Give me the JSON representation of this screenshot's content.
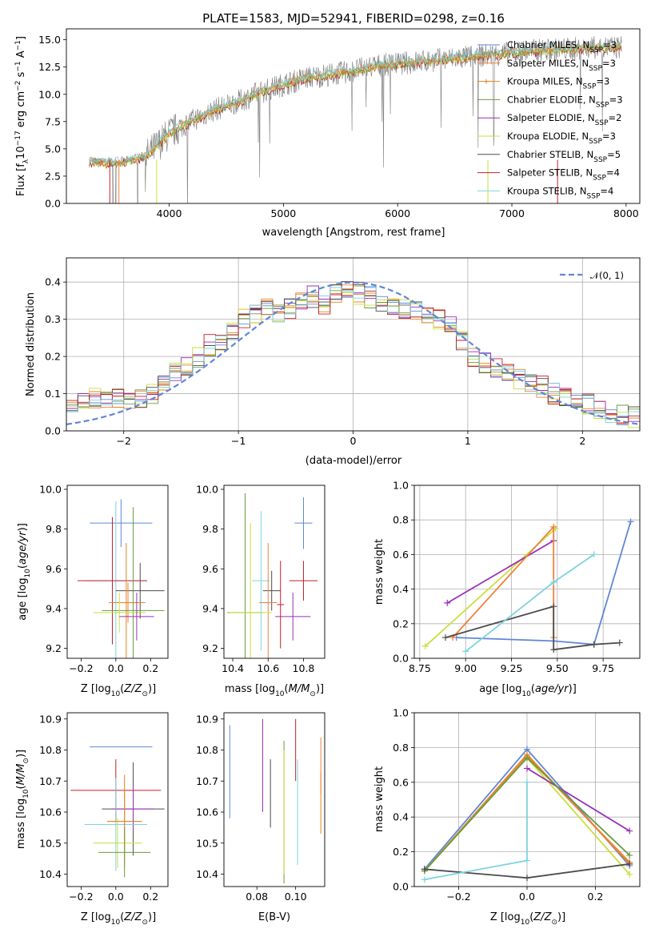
{
  "figure": {
    "title": "PLATE=1583, MJD=52941, FIBERID=0298, z=0.16"
  },
  "colors": {
    "data": "#7f7f7f",
    "chabrier_miles": "#5f87d6",
    "salpeter_miles": "#f0813a",
    "kroupa_miles": "#e5841e",
    "chabrier_elodie": "#6a9b3e",
    "salpeter_elodie": "#9b2fb8",
    "kroupa_elodie": "#c9df3c",
    "chabrier_stelib": "#4d4d4d",
    "salpeter_stelib": "#c0202a",
    "kroupa_stelib": "#7fd2e0",
    "normal": "#5f87d6"
  },
  "chart_data": [
    {
      "id": "spectrum",
      "type": "line",
      "xlabel": "wavelength [Angstrom, rest frame]",
      "ylabel_html": "Flux [f",
      "ylabel_parts": [
        "Flux [f",
        "λ",
        "10",
        "−17",
        " erg cm",
        "−2",
        " s",
        "−1",
        " A",
        "−1",
        "]"
      ],
      "xlim": [
        3100,
        8120
      ],
      "ylim": [
        0,
        16
      ],
      "xticks": [
        4000,
        5000,
        6000,
        7000,
        8000
      ],
      "yticks": [
        0.0,
        2.5,
        5.0,
        7.5,
        10.0,
        12.5,
        15.0
      ],
      "ytick_labels": [
        "0.0",
        "2.5",
        "5.0",
        "7.5",
        "10.0",
        "12.5",
        "15.0"
      ],
      "continuum": {
        "x": [
          3300,
          3450,
          3600,
          3800,
          4000,
          4200,
          4400,
          4600,
          4800,
          5000,
          5200,
          5400,
          5600,
          5800,
          6000,
          6200,
          6400,
          6600,
          6800,
          7000,
          7200,
          7400,
          7600,
          7800,
          7950
        ],
        "y": [
          3.8,
          3.7,
          3.8,
          4.3,
          6.4,
          7.6,
          8.6,
          9.3,
          10.2,
          10.9,
          11.5,
          11.8,
          12.1,
          12.6,
          12.8,
          13.0,
          13.2,
          13.4,
          13.6,
          13.8,
          14.0,
          14.1,
          14.2,
          14.3,
          14.3
        ]
      },
      "grid": false,
      "legend_position": "right",
      "legend": [
        {
          "key": "chabrier_miles",
          "label": "Chabrier MILES, N",
          "sub": "SSP",
          "tail": "=3"
        },
        {
          "key": "salpeter_miles",
          "label": "Salpeter MILES, N",
          "sub": "SSP",
          "tail": "=3"
        },
        {
          "key": "kroupa_miles",
          "label": "Kroupa MILES, N",
          "sub": "SSP",
          "tail": "=3"
        },
        {
          "key": "chabrier_elodie",
          "label": "Chabrier ELODIE, N",
          "sub": "SSP",
          "tail": "=3"
        },
        {
          "key": "salpeter_elodie",
          "label": "Salpeter ELODIE, N",
          "sub": "SSP",
          "tail": "=2"
        },
        {
          "key": "kroupa_elodie",
          "label": "Kroupa ELODIE, N",
          "sub": "SSP",
          "tail": "=3"
        },
        {
          "key": "chabrier_stelib",
          "label": "Chabrier STELIB, N",
          "sub": "SSP",
          "tail": "=5"
        },
        {
          "key": "salpeter_stelib",
          "label": "Salpeter STELIB, N",
          "sub": "SSP",
          "tail": "=4"
        },
        {
          "key": "kroupa_stelib",
          "label": "Kroupa STELIB, N",
          "sub": "SSP",
          "tail": "=4"
        }
      ]
    },
    {
      "id": "residuals",
      "type": "line",
      "xlabel": "(data-model)/error",
      "ylabel": "Normed distribution",
      "xlim": [
        -2.5,
        2.5
      ],
      "ylim": [
        0,
        0.465
      ],
      "xticks": [
        -2,
        -1,
        0,
        1,
        2
      ],
      "xtick_labels": [
        "−2",
        "−1",
        "0",
        "1",
        "2"
      ],
      "yticks": [
        0.0,
        0.1,
        0.2,
        0.3,
        0.4
      ],
      "ytick_labels": [
        "0.0",
        "0.1",
        "0.2",
        "0.3",
        "0.4"
      ],
      "grid": true,
      "legend_position": "top-right",
      "legend_label": "𝒩(0, 1)",
      "histogram_edges": [
        -2.5,
        -2.4,
        -2.3,
        -2.2,
        -2.1,
        -2.0,
        -1.9,
        -1.8,
        -1.7,
        -1.6,
        -1.5,
        -1.4,
        -1.3,
        -1.2,
        -1.1,
        -1.0,
        -0.9,
        -0.8,
        -0.7,
        -0.6,
        -0.5,
        -0.4,
        -0.3,
        -0.2,
        -0.1,
        0.0,
        0.1,
        0.2,
        0.3,
        0.4,
        0.5,
        0.6,
        0.7,
        0.8,
        0.9,
        1.0,
        1.1,
        1.2,
        1.3,
        1.4,
        1.5,
        1.6,
        1.7,
        1.8,
        1.9,
        2.0,
        2.1,
        2.2,
        2.3,
        2.4,
        2.5
      ],
      "histogram_heights": [
        0.065,
        0.075,
        0.085,
        0.08,
        0.09,
        0.085,
        0.09,
        0.1,
        0.13,
        0.16,
        0.17,
        0.2,
        0.23,
        0.24,
        0.27,
        0.3,
        0.32,
        0.34,
        0.32,
        0.33,
        0.35,
        0.36,
        0.34,
        0.37,
        0.38,
        0.37,
        0.36,
        0.35,
        0.34,
        0.33,
        0.32,
        0.31,
        0.3,
        0.28,
        0.24,
        0.2,
        0.18,
        0.17,
        0.16,
        0.14,
        0.13,
        0.12,
        0.1,
        0.09,
        0.075,
        0.07,
        0.05,
        0.045,
        0.04,
        0.035
      ],
      "normal_curve": {
        "mu": 0,
        "sigma": 1
      }
    },
    {
      "id": "age-vs-Z",
      "type": "scatter",
      "xlabel": "Z [log",
      "ylabel": "age  [log",
      "xlim": [
        -0.28,
        0.3
      ],
      "ylim": [
        9.15,
        10.02
      ],
      "xticks": [
        -0.2,
        0.0,
        0.2
      ],
      "xtick_labels": [
        "−0.2",
        "0.0",
        "0.2"
      ],
      "yticks": [
        9.2,
        9.4,
        9.6,
        9.8,
        10.0
      ],
      "ytick_labels": [
        "9.2",
        "9.4",
        "9.6",
        "9.8",
        "10.0"
      ],
      "points": [
        {
          "key": "chabrier_miles",
          "x": 0.03,
          "y": 9.83,
          "xerr": 0.18,
          "yerr": 0.12
        },
        {
          "key": "kroupa_stelib",
          "x": 0.0,
          "y": 9.54,
          "xerr": 0.18,
          "yerr": 0.4
        },
        {
          "key": "salpeter_stelib",
          "x": -0.02,
          "y": 9.54,
          "xerr": 0.2,
          "yerr": 0.32
        },
        {
          "key": "chabrier_stelib",
          "x": 0.14,
          "y": 9.49,
          "xerr": 0.14,
          "yerr": 0.14
        },
        {
          "key": "salpeter_miles",
          "x": 0.07,
          "y": 9.43,
          "xerr": 0.1,
          "yerr": 0.1
        },
        {
          "key": "kroupa_miles",
          "x": 0.06,
          "y": 9.43,
          "xerr": 0.1,
          "yerr": 0.3
        },
        {
          "key": "chabrier_elodie",
          "x": 0.1,
          "y": 9.39,
          "xerr": 0.18,
          "yerr": 0.52
        },
        {
          "key": "kroupa_elodie",
          "x": 0.02,
          "y": 9.38,
          "xerr": 0.15,
          "yerr": 0.1
        },
        {
          "key": "salpeter_elodie",
          "x": 0.12,
          "y": 9.36,
          "xerr": 0.1,
          "yerr": 0.12
        }
      ]
    },
    {
      "id": "age-vs-mass",
      "type": "scatter",
      "xlabel": "mass [log",
      "xlim": [
        10.35,
        10.92
      ],
      "ylim": [
        9.15,
        10.02
      ],
      "xticks": [
        10.4,
        10.6,
        10.8
      ],
      "xtick_labels": [
        "10.4",
        "10.6",
        "10.8"
      ],
      "yticks": [
        9.2,
        9.4,
        9.6,
        9.8,
        10.0
      ],
      "ytick_labels": [
        "9.2",
        "9.4",
        "9.6",
        "9.8",
        "10.0"
      ],
      "points": [
        {
          "key": "chabrier_miles",
          "x": 10.8,
          "y": 9.83,
          "xerr": 0.05,
          "yerr": 0.13
        },
        {
          "key": "salpeter_stelib",
          "x": 10.8,
          "y": 9.54,
          "xerr": 0.08,
          "yerr": 0.1
        },
        {
          "key": "chabrier_stelib",
          "x": 10.62,
          "y": 9.49,
          "xerr": 0.05,
          "yerr": 0.1
        },
        {
          "key": "kroupa_stelib",
          "x": 10.56,
          "y": 9.54,
          "xerr": 0.05,
          "yerr": 0.35
        },
        {
          "key": "salpeter_miles",
          "x": 10.6,
          "y": 9.43,
          "xerr": 0.05,
          "yerr": 0.3
        },
        {
          "key": "chabrier_elodie",
          "x": 10.47,
          "y": 9.38,
          "xerr": 0.1,
          "yerr": 0.6
        },
        {
          "key": "kroupa_elodie",
          "x": 10.5,
          "y": 9.38,
          "xerr": 0.12,
          "yerr": 0.45
        },
        {
          "key": "salpeter_elodie",
          "x": 10.74,
          "y": 9.36,
          "xerr": 0.1,
          "yerr": 0.12
        },
        {
          "key": "salpeter_stelib",
          "x": 10.67,
          "y": 9.42,
          "xerr": 0.02,
          "yerr": 0.22
        }
      ]
    },
    {
      "id": "weight-vs-age",
      "type": "line",
      "xlabel": "age  [log",
      "ylabel": "mass weight",
      "xlim": [
        8.72,
        9.95
      ],
      "ylim": [
        0.0,
        1.0
      ],
      "xticks": [
        8.75,
        9.0,
        9.25,
        9.5,
        9.75
      ],
      "xtick_labels": [
        "8.75",
        "9.00",
        "9.25",
        "9.50",
        "9.75"
      ],
      "yticks": [
        0.0,
        0.2,
        0.4,
        0.6,
        0.8,
        1.0
      ],
      "ytick_labels": [
        "0.0",
        "0.2",
        "0.4",
        "0.6",
        "0.8",
        "1.0"
      ],
      "grid": true,
      "series": [
        {
          "key": "chabrier_miles",
          "x": [
            8.95,
            9.48,
            9.7,
            9.9
          ],
          "y": [
            0.12,
            0.1,
            0.08,
            0.79
          ]
        },
        {
          "key": "kroupa_elodie",
          "x": [
            8.78,
            9.49
          ],
          "y": [
            0.07,
            0.75
          ]
        },
        {
          "key": "salpeter_elodie",
          "x": [
            8.9,
            9.48
          ],
          "y": [
            0.32,
            0.68
          ]
        },
        {
          "key": "salpeter_miles",
          "x": [
            8.93,
            9.48,
            9.48
          ],
          "y": [
            0.12,
            0.76,
            0.12
          ]
        },
        {
          "key": "chabrier_stelib",
          "x": [
            8.89,
            9.48,
            9.48,
            9.7,
            9.84
          ],
          "y": [
            0.12,
            0.3,
            0.05,
            0.08,
            0.09
          ]
        },
        {
          "key": "kroupa_stelib",
          "x": [
            9.0,
            9.48,
            9.7
          ],
          "y": [
            0.04,
            0.44,
            0.6
          ]
        }
      ]
    },
    {
      "id": "mass-vs-Z",
      "type": "scatter",
      "xlabel": "Z [log",
      "ylabel": "mass [log",
      "xlim": [
        -0.28,
        0.3
      ],
      "ylim": [
        10.36,
        10.92
      ],
      "xticks": [
        -0.2,
        0.0,
        0.2
      ],
      "xtick_labels": [
        "−0.2",
        "0.0",
        "0.2"
      ],
      "yticks": [
        10.4,
        10.5,
        10.6,
        10.7,
        10.8,
        10.9
      ],
      "ytick_labels": [
        "10.4",
        "10.5",
        "10.6",
        "10.7",
        "10.8",
        "10.9"
      ],
      "points": [
        {
          "key": "chabrier_miles",
          "x": 0.03,
          "y": 10.81,
          "xerr": 0.18,
          "yerr": 0.0
        },
        {
          "key": "salpeter_stelib",
          "x": 0.0,
          "y": 10.67,
          "xerr": 0.26,
          "yerr": 0.1
        },
        {
          "key": "chabrier_stelib",
          "x": 0.1,
          "y": 10.61,
          "xerr": 0.18,
          "yerr": 0.15
        },
        {
          "key": "salpeter_elodie",
          "x": 0.1,
          "y": 10.61,
          "xerr": 0.12,
          "yerr": 0.07
        },
        {
          "key": "kroupa_stelib",
          "x": 0.0,
          "y": 10.56,
          "xerr": 0.18,
          "yerr": 0.15
        },
        {
          "key": "salpeter_miles",
          "x": 0.05,
          "y": 10.57,
          "xerr": 0.1,
          "yerr": 0.1
        },
        {
          "key": "kroupa_miles",
          "x": 0.05,
          "y": 10.57,
          "xerr": 0.1,
          "yerr": 0.15
        },
        {
          "key": "kroupa_elodie",
          "x": 0.01,
          "y": 10.5,
          "xerr": 0.14,
          "yerr": 0.08
        },
        {
          "key": "chabrier_elodie",
          "x": 0.05,
          "y": 10.47,
          "xerr": 0.15,
          "yerr": 0.08
        }
      ]
    },
    {
      "id": "mass-vs-ebv",
      "type": "scatter",
      "xlabel": "E(B-V)",
      "xlim": [
        0.063,
        0.115
      ],
      "ylim": [
        10.36,
        10.92
      ],
      "xticks": [
        0.08,
        0.1
      ],
      "xtick_labels": [
        "0.08",
        "0.10"
      ],
      "yticks": [
        10.4,
        10.5,
        10.6,
        10.7,
        10.8,
        10.9
      ],
      "ytick_labels": [
        "10.4",
        "10.5",
        "10.6",
        "10.7",
        "10.8",
        "10.9"
      ],
      "points": [
        {
          "key": "chabrier_miles",
          "x": 0.066,
          "y": 10.73,
          "xerr": 0,
          "yerr": 0.15
        },
        {
          "key": "salpeter_elodie",
          "x": 0.083,
          "y": 10.75,
          "xerr": 0,
          "yerr": 0.15
        },
        {
          "key": "chabrier_stelib",
          "x": 0.087,
          "y": 10.66,
          "xerr": 0,
          "yerr": 0.11
        },
        {
          "key": "chabrier_elodie",
          "x": 0.094,
          "y": 10.6,
          "xerr": 0,
          "yerr": 0.23
        },
        {
          "key": "kroupa_elodie",
          "x": 0.094,
          "y": 10.6,
          "xerr": 0,
          "yerr": 0.2
        },
        {
          "key": "salpeter_stelib",
          "x": 0.1,
          "y": 10.8,
          "xerr": 0,
          "yerr": 0.1
        },
        {
          "key": "kroupa_stelib",
          "x": 0.101,
          "y": 10.6,
          "xerr": 0,
          "yerr": 0.17
        },
        {
          "key": "kroupa_miles",
          "x": 0.113,
          "y": 10.63,
          "xerr": 0,
          "yerr": 0.1
        },
        {
          "key": "salpeter_miles",
          "x": 0.113,
          "y": 10.75,
          "xerr": 0,
          "yerr": 0.09
        }
      ]
    },
    {
      "id": "weight-vs-Z",
      "type": "line",
      "xlabel": "Z [log",
      "ylabel": "mass weight",
      "xlim": [
        -0.33,
        0.33
      ],
      "ylim": [
        0.0,
        1.0
      ],
      "xticks": [
        -0.2,
        0.0,
        0.2
      ],
      "xtick_labels": [
        "−0.2",
        "0.0",
        "0.2"
      ],
      "yticks": [
        0.0,
        0.2,
        0.4,
        0.6,
        0.8,
        1.0
      ],
      "ytick_labels": [
        "0.0",
        "0.2",
        "0.4",
        "0.6",
        "0.8",
        "1.0"
      ],
      "grid": true,
      "series": [
        {
          "key": "chabrier_miles",
          "x": [
            -0.3,
            0.0,
            0.3
          ],
          "y": [
            0.1,
            0.79,
            0.12
          ]
        },
        {
          "key": "kroupa_miles",
          "x": [
            -0.3,
            0.0,
            0.3
          ],
          "y": [
            0.09,
            0.76,
            0.13
          ]
        },
        {
          "key": "salpeter_miles",
          "x": [
            -0.3,
            0.0,
            0.3
          ],
          "y": [
            0.09,
            0.75,
            0.14
          ]
        },
        {
          "key": "kroupa_elodie",
          "x": [
            -0.3,
            0.0,
            0.3
          ],
          "y": [
            0.09,
            0.74,
            0.07
          ]
        },
        {
          "key": "salpeter_elodie",
          "x": [
            0.0,
            0.3
          ],
          "y": [
            0.68,
            0.32
          ]
        },
        {
          "key": "chabrier_elodie",
          "x": [
            -0.3,
            0.0,
            0.3
          ],
          "y": [
            0.09,
            0.74,
            0.18
          ]
        },
        {
          "key": "chabrier_stelib",
          "x": [
            -0.3,
            0.0,
            0.3
          ],
          "y": [
            0.1,
            0.05,
            0.13
          ]
        },
        {
          "key": "kroupa_stelib",
          "x": [
            -0.3,
            0.0,
            0.0
          ],
          "y": [
            0.04,
            0.15,
            0.6
          ]
        }
      ]
    }
  ]
}
